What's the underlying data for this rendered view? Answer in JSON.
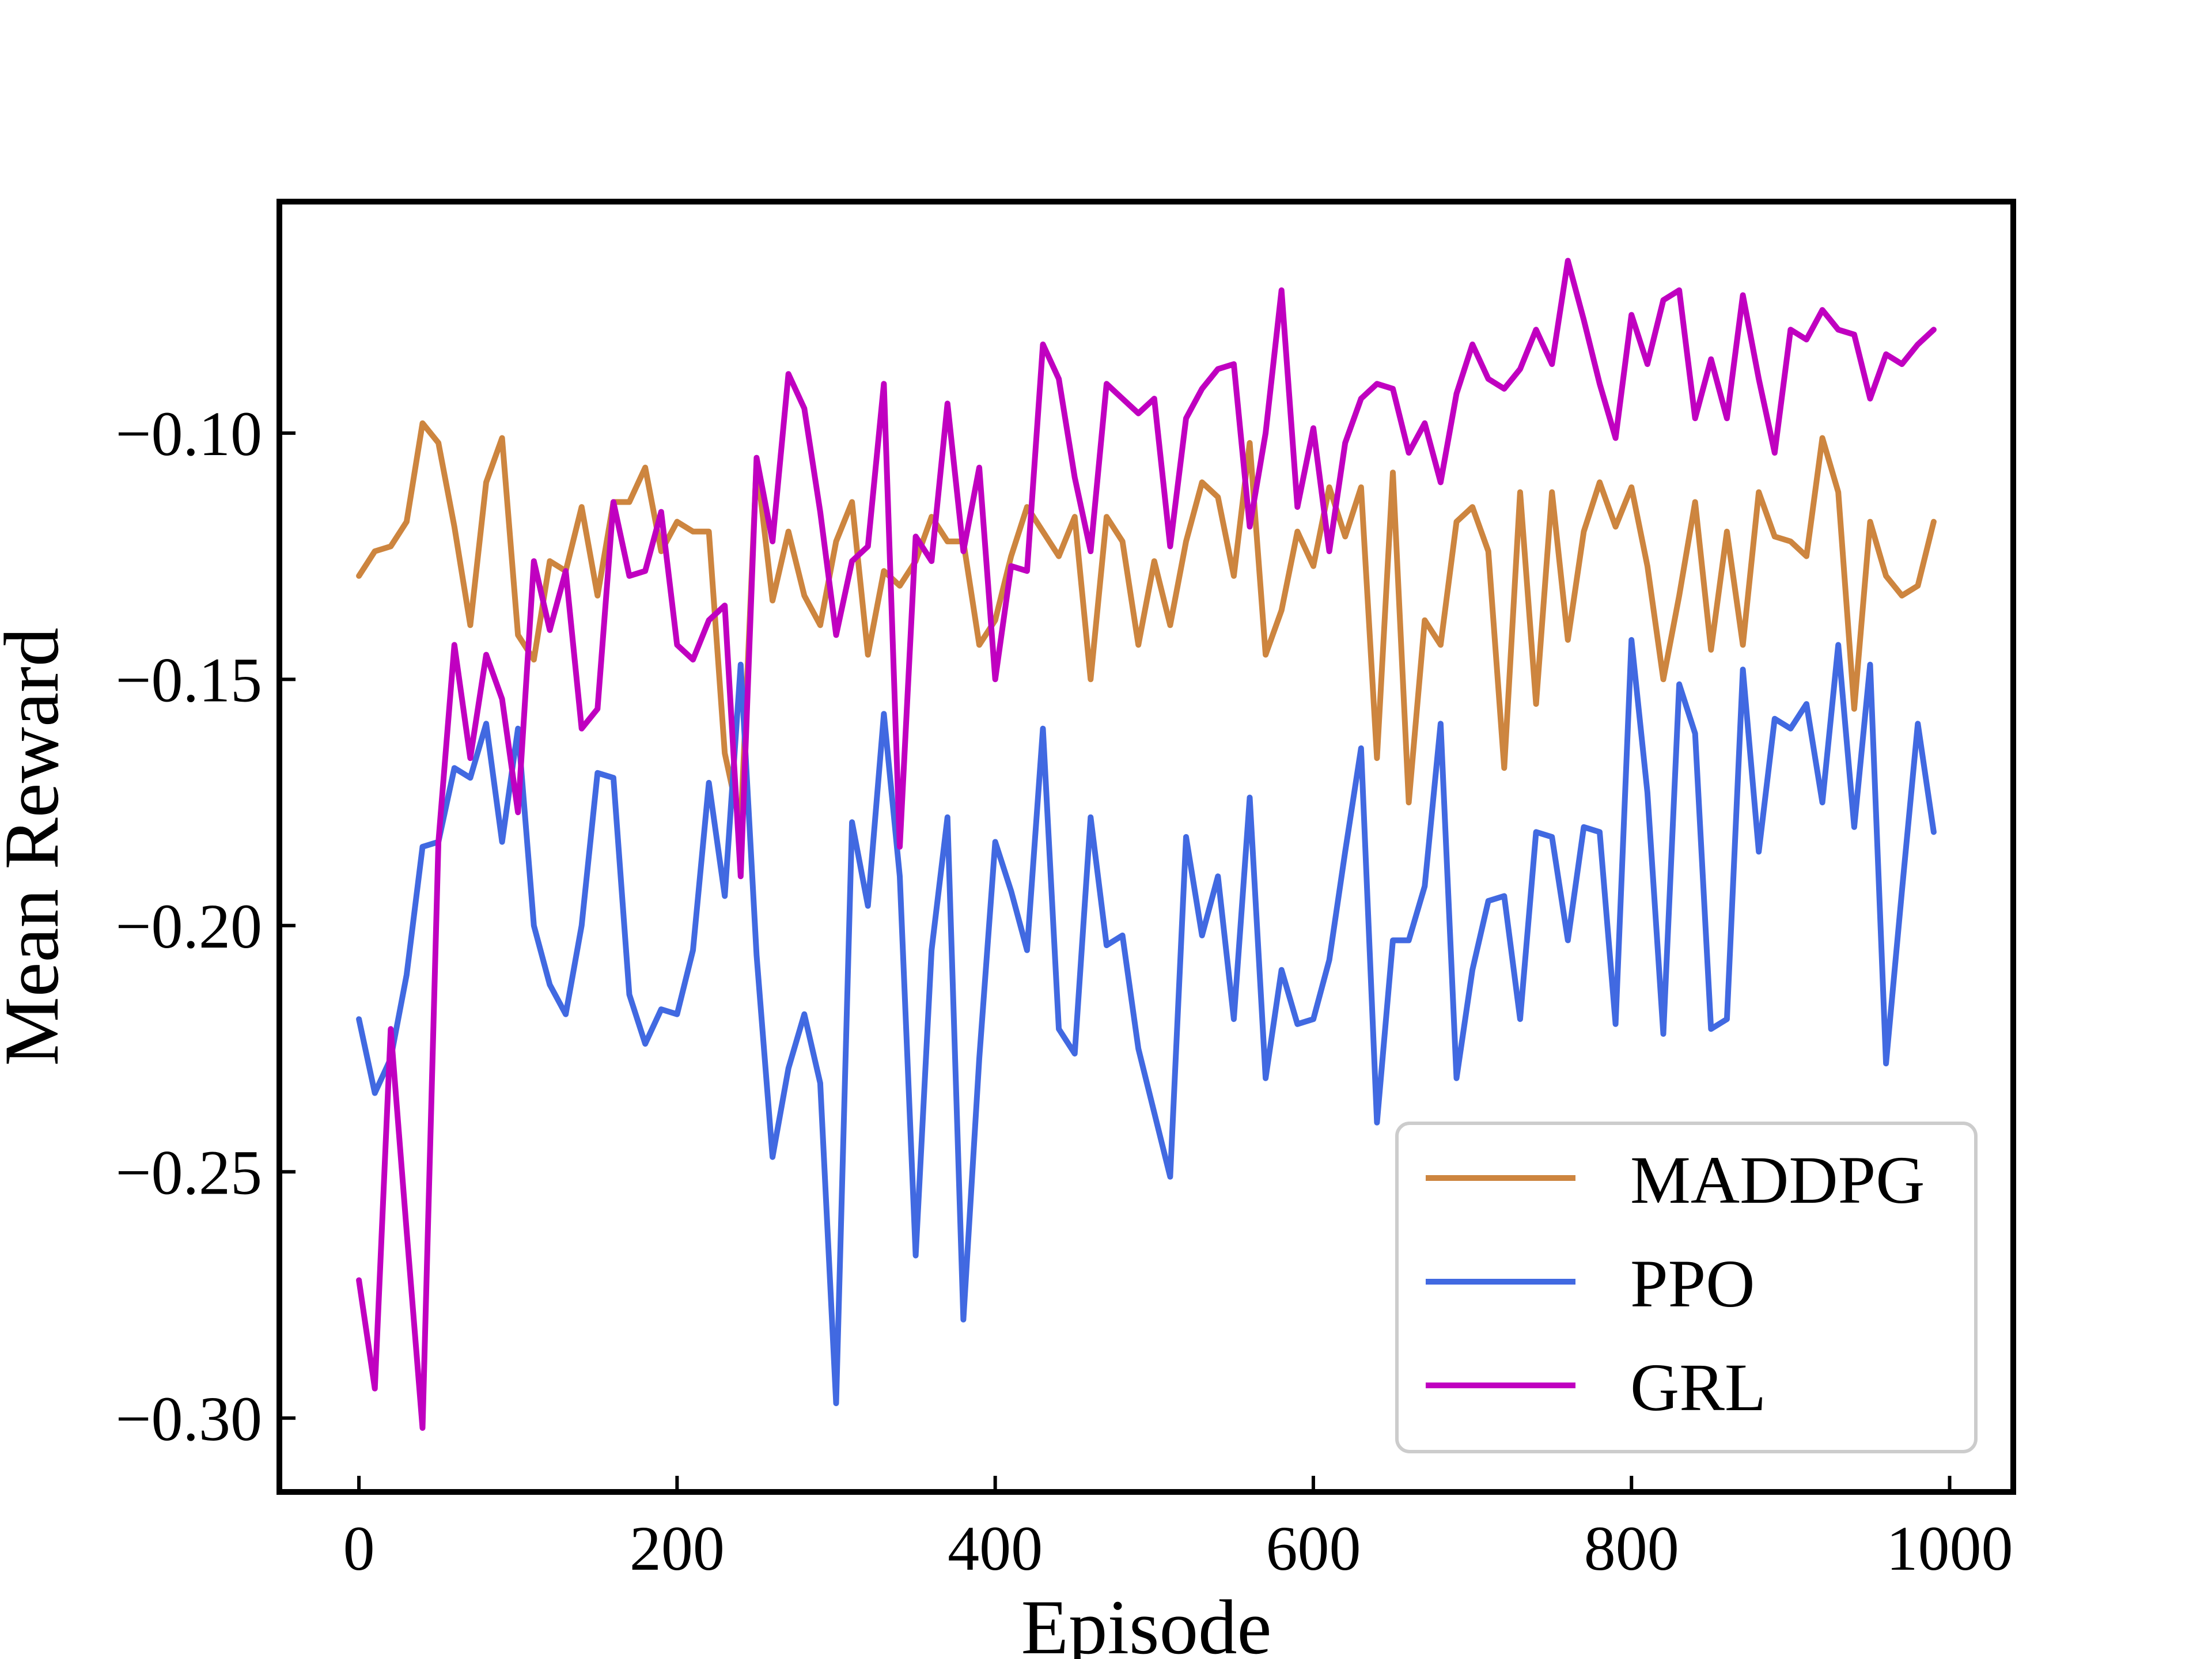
{
  "chart_data": {
    "type": "line",
    "xlabel": "Episode",
    "ylabel": "Mean Reward",
    "xlim": [
      -50,
      1040
    ],
    "ylim": [
      -0.315,
      -0.053
    ],
    "x_ticks": [
      0,
      200,
      400,
      600,
      800,
      1000
    ],
    "y_ticks": [
      -0.3,
      -0.25,
      -0.2,
      -0.15,
      -0.1
    ],
    "x_tick_labels": [
      "0",
      "200",
      "400",
      "600",
      "800",
      "1000"
    ],
    "y_tick_labels": [
      "−0.30",
      "−0.25",
      "−0.20",
      "−0.15",
      "−0.10"
    ],
    "grid": false,
    "legend_position": "lower-right",
    "x": [
      0,
      10,
      20,
      30,
      40,
      50,
      60,
      70,
      80,
      90,
      100,
      110,
      120,
      130,
      140,
      150,
      160,
      170,
      180,
      190,
      200,
      210,
      220,
      230,
      240,
      250,
      260,
      270,
      280,
      290,
      300,
      310,
      320,
      330,
      340,
      350,
      360,
      370,
      380,
      390,
      400,
      410,
      420,
      430,
      440,
      450,
      460,
      470,
      480,
      490,
      500,
      510,
      520,
      530,
      540,
      550,
      560,
      570,
      580,
      590,
      600,
      610,
      620,
      630,
      640,
      650,
      660,
      670,
      680,
      690,
      700,
      710,
      720,
      730,
      740,
      750,
      760,
      770,
      780,
      790,
      800,
      810,
      820,
      830,
      840,
      850,
      860,
      870,
      880,
      890,
      900,
      910,
      920,
      930,
      940,
      950,
      960,
      970,
      980,
      990
    ],
    "series": [
      {
        "name": "MADDPG",
        "color": "#CD853F",
        "values": [
          -0.129,
          -0.124,
          -0.123,
          -0.118,
          -0.098,
          -0.102,
          -0.119,
          -0.139,
          -0.11,
          -0.101,
          -0.141,
          -0.146,
          -0.126,
          -0.128,
          -0.115,
          -0.133,
          -0.114,
          -0.114,
          -0.107,
          -0.124,
          -0.118,
          -0.12,
          -0.12,
          -0.165,
          -0.18,
          -0.106,
          -0.134,
          -0.12,
          -0.133,
          -0.139,
          -0.122,
          -0.114,
          -0.145,
          -0.128,
          -0.131,
          -0.126,
          -0.117,
          -0.122,
          -0.122,
          -0.143,
          -0.138,
          -0.125,
          -0.115,
          -0.12,
          -0.125,
          -0.117,
          -0.15,
          -0.117,
          -0.122,
          -0.143,
          -0.126,
          -0.139,
          -0.122,
          -0.11,
          -0.113,
          -0.129,
          -0.102,
          -0.145,
          -0.136,
          -0.12,
          -0.127,
          -0.111,
          -0.121,
          -0.111,
          -0.166,
          -0.108,
          -0.175,
          -0.138,
          -0.143,
          -0.118,
          -0.115,
          -0.124,
          -0.168,
          -0.112,
          -0.155,
          -0.112,
          -0.142,
          -0.12,
          -0.11,
          -0.119,
          -0.111,
          -0.127,
          -0.15,
          -0.133,
          -0.114,
          -0.144,
          -0.12,
          -0.143,
          -0.112,
          -0.121,
          -0.122,
          -0.125,
          -0.101,
          -0.112,
          -0.156,
          -0.118,
          -0.129,
          -0.133,
          -0.131,
          -0.118
        ]
      },
      {
        "name": "PPO",
        "color": "#4169E1",
        "values": [
          -0.219,
          -0.234,
          -0.227,
          -0.21,
          -0.184,
          -0.183,
          -0.168,
          -0.17,
          -0.159,
          -0.183,
          -0.16,
          -0.2,
          -0.212,
          -0.218,
          -0.2,
          -0.169,
          -0.17,
          -0.214,
          -0.224,
          -0.217,
          -0.218,
          -0.205,
          -0.171,
          -0.194,
          -0.147,
          -0.206,
          -0.247,
          -0.229,
          -0.218,
          -0.232,
          -0.297,
          -0.179,
          -0.196,
          -0.157,
          -0.19,
          -0.267,
          -0.205,
          -0.178,
          -0.28,
          -0.227,
          -0.183,
          -0.193,
          -0.205,
          -0.16,
          -0.221,
          -0.226,
          -0.178,
          -0.204,
          -0.202,
          -0.225,
          -0.238,
          -0.251,
          -0.182,
          -0.202,
          -0.19,
          -0.219,
          -0.174,
          -0.231,
          -0.209,
          -0.22,
          -0.219,
          -0.207,
          -0.185,
          -0.164,
          -0.24,
          -0.203,
          -0.203,
          -0.192,
          -0.159,
          -0.231,
          -0.209,
          -0.195,
          -0.194,
          -0.219,
          -0.181,
          -0.182,
          -0.203,
          -0.18,
          -0.181,
          -0.22,
          -0.142,
          -0.173,
          -0.222,
          -0.151,
          -0.161,
          -0.221,
          -0.219,
          -0.148,
          -0.185,
          -0.158,
          -0.16,
          -0.155,
          -0.175,
          -0.143,
          -0.18,
          -0.147,
          -0.228,
          -0.193,
          -0.159,
          -0.181
        ]
      },
      {
        "name": "GRL",
        "color": "#C000C0",
        "values": [
          -0.272,
          -0.294,
          -0.221,
          -0.262,
          -0.302,
          -0.183,
          -0.143,
          -0.166,
          -0.145,
          -0.154,
          -0.177,
          -0.126,
          -0.14,
          -0.128,
          -0.16,
          -0.156,
          -0.114,
          -0.129,
          -0.128,
          -0.116,
          -0.143,
          -0.146,
          -0.138,
          -0.135,
          -0.19,
          -0.105,
          -0.122,
          -0.088,
          -0.095,
          -0.116,
          -0.141,
          -0.126,
          -0.123,
          -0.09,
          -0.184,
          -0.121,
          -0.126,
          -0.094,
          -0.124,
          -0.107,
          -0.15,
          -0.127,
          -0.128,
          -0.082,
          -0.089,
          -0.109,
          -0.124,
          -0.09,
          -0.093,
          -0.096,
          -0.093,
          -0.123,
          -0.097,
          -0.091,
          -0.087,
          -0.086,
          -0.119,
          -0.1,
          -0.071,
          -0.115,
          -0.099,
          -0.124,
          -0.102,
          -0.093,
          -0.09,
          -0.091,
          -0.104,
          -0.098,
          -0.11,
          -0.092,
          -0.082,
          -0.089,
          -0.091,
          -0.087,
          -0.079,
          -0.086,
          -0.065,
          -0.077,
          -0.09,
          -0.101,
          -0.076,
          -0.086,
          -0.073,
          -0.071,
          -0.097,
          -0.085,
          -0.097,
          -0.072,
          -0.089,
          -0.104,
          -0.079,
          -0.081,
          -0.075,
          -0.079,
          -0.08,
          -0.093,
          -0.084,
          -0.086,
          -0.082,
          -0.079
        ]
      }
    ]
  }
}
